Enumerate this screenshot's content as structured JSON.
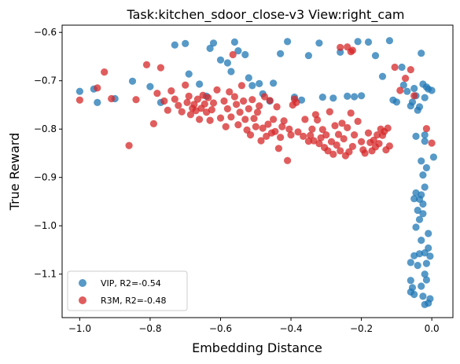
{
  "chart_data": {
    "type": "scatter",
    "title": "Task:kitchen_sdoor_close-v3 View:right_cam",
    "xlabel": "Embedding Distance",
    "ylabel": "True Reward",
    "xlim": [
      -1.05,
      0.06
    ],
    "ylim": [
      -1.19,
      -0.585
    ],
    "x_ticks": [
      -1.0,
      -0.8,
      -0.6,
      -0.4,
      -0.2,
      0.0
    ],
    "x_tick_labels": [
      "−1.0",
      "−0.8",
      "−0.6",
      "−0.4",
      "−0.2",
      "0.0"
    ],
    "y_ticks": [
      -0.6,
      -0.7,
      -0.8,
      -0.9,
      -1.0,
      -1.1
    ],
    "y_tick_labels": [
      "−0.6",
      "−0.7",
      "−0.8",
      "−0.9",
      "−1.0",
      "−1.1"
    ],
    "grid": false,
    "legend_position": "lower-left",
    "series": [
      {
        "name": "VIP, R2=-0.54",
        "color": "#1f77b4",
        "points": [
          [
            -1.0,
            -0.722
          ],
          [
            -0.96,
            -0.717
          ],
          [
            -0.95,
            -0.745
          ],
          [
            -0.9,
            -0.737
          ],
          [
            -0.85,
            -0.701
          ],
          [
            -0.8,
            -0.712
          ],
          [
            -0.77,
            -0.745
          ],
          [
            -0.73,
            -0.626
          ],
          [
            -0.7,
            -0.623
          ],
          [
            -0.69,
            -0.686
          ],
          [
            -0.66,
            -0.707
          ],
          [
            -0.64,
            -0.732
          ],
          [
            -0.63,
            -0.633
          ],
          [
            -0.62,
            -0.622
          ],
          [
            -0.6,
            -0.657
          ],
          [
            -0.58,
            -0.663
          ],
          [
            -0.57,
            -0.681
          ],
          [
            -0.56,
            -0.62
          ],
          [
            -0.55,
            -0.638
          ],
          [
            -0.53,
            -0.646
          ],
          [
            -0.52,
            -0.694
          ],
          [
            -0.51,
            -0.71
          ],
          [
            -0.49,
            -0.706
          ],
          [
            -0.48,
            -0.727
          ],
          [
            -0.46,
            -0.742
          ],
          [
            -0.45,
            -0.705
          ],
          [
            -0.43,
            -0.644
          ],
          [
            -0.41,
            -0.619
          ],
          [
            -0.39,
            -0.734
          ],
          [
            -0.37,
            -0.74
          ],
          [
            -0.35,
            -0.648
          ],
          [
            -0.32,
            -0.622
          ],
          [
            -0.31,
            -0.734
          ],
          [
            -0.28,
            -0.736
          ],
          [
            -0.26,
            -0.641
          ],
          [
            -0.24,
            -0.732
          ],
          [
            -0.22,
            -0.733
          ],
          [
            -0.21,
            -0.619
          ],
          [
            -0.2,
            -0.731
          ],
          [
            -0.18,
            -0.62
          ],
          [
            -0.16,
            -0.648
          ],
          [
            -0.14,
            -0.691
          ],
          [
            -0.12,
            -0.617
          ],
          [
            -0.11,
            -0.74
          ],
          [
            -0.1,
            -0.744
          ],
          [
            -0.085,
            -0.672
          ],
          [
            -0.08,
            -0.709
          ],
          [
            -0.07,
            -0.722
          ],
          [
            -0.06,
            -0.752
          ],
          [
            -0.055,
            -0.744
          ],
          [
            -0.05,
            -0.716
          ],
          [
            -0.045,
            -0.731
          ],
          [
            -0.04,
            -0.761
          ],
          [
            -0.035,
            -0.754
          ],
          [
            -0.03,
            -0.643
          ],
          [
            -0.025,
            -0.707
          ],
          [
            -0.02,
            -0.735
          ],
          [
            -0.015,
            -0.713
          ],
          [
            -0.01,
            -0.717
          ],
          [
            0.0,
            -0.72
          ],
          [
            0.005,
            -0.858
          ],
          [
            -0.02,
            -0.825
          ],
          [
            -0.045,
            -0.815
          ],
          [
            -0.03,
            -0.866
          ],
          [
            -0.02,
            -0.812
          ],
          [
            -0.015,
            -0.88
          ],
          [
            -0.025,
            -0.895
          ],
          [
            -0.02,
            -0.92
          ],
          [
            -0.03,
            -0.936
          ],
          [
            -0.035,
            -0.945
          ],
          [
            -0.025,
            -0.955
          ],
          [
            -0.045,
            -0.932
          ],
          [
            -0.05,
            -0.944
          ],
          [
            -0.04,
            -0.968
          ],
          [
            -0.035,
            -0.987
          ],
          [
            -0.025,
            -0.975
          ],
          [
            -0.045,
            -1.003
          ],
          [
            -0.03,
            -1.03
          ],
          [
            -0.01,
            -1.016
          ],
          [
            -0.01,
            -1.046
          ],
          [
            -0.02,
            -1.056
          ],
          [
            -0.035,
            -1.058
          ],
          [
            -0.005,
            -1.063
          ],
          [
            -0.015,
            -1.078
          ],
          [
            -0.04,
            -1.082
          ],
          [
            -0.05,
            -1.062
          ],
          [
            -0.06,
            -1.076
          ],
          [
            -0.02,
            -1.1
          ],
          [
            -0.015,
            -1.112
          ],
          [
            -0.06,
            -1.113
          ],
          [
            -0.055,
            -1.128
          ],
          [
            -0.06,
            -1.137
          ],
          [
            -0.05,
            -1.142
          ],
          [
            -0.03,
            -1.125
          ],
          [
            -0.025,
            -1.146
          ],
          [
            -0.02,
            -1.163
          ],
          [
            -0.01,
            -1.16
          ],
          [
            -0.005,
            -1.151
          ]
        ]
      },
      {
        "name": "R3M, R2=-0.48",
        "color": "#d62728",
        "points": [
          [
            -1.0,
            -0.74
          ],
          [
            -0.95,
            -0.715
          ],
          [
            -0.93,
            -0.682
          ],
          [
            -0.91,
            -0.737
          ],
          [
            -0.86,
            -0.834
          ],
          [
            -0.84,
            -0.739
          ],
          [
            -0.81,
            -0.667
          ],
          [
            -0.79,
            -0.789
          ],
          [
            -0.78,
            -0.726
          ],
          [
            -0.77,
            -0.673
          ],
          [
            -0.76,
            -0.742
          ],
          [
            -0.75,
            -0.761
          ],
          [
            -0.74,
            -0.721
          ],
          [
            -0.73,
            -0.738
          ],
          [
            -0.72,
            -0.751
          ],
          [
            -0.71,
            -0.764
          ],
          [
            -0.7,
            -0.709
          ],
          [
            -0.695,
            -0.745
          ],
          [
            -0.69,
            -0.732
          ],
          [
            -0.685,
            -0.77
          ],
          [
            -0.68,
            -0.757
          ],
          [
            -0.675,
            -0.749
          ],
          [
            -0.67,
            -0.762
          ],
          [
            -0.665,
            -0.738
          ],
          [
            -0.66,
            -0.78
          ],
          [
            -0.655,
            -0.757
          ],
          [
            -0.65,
            -0.73
          ],
          [
            -0.645,
            -0.748
          ],
          [
            -0.64,
            -0.765
          ],
          [
            -0.635,
            -0.735
          ],
          [
            -0.63,
            -0.782
          ],
          [
            -0.625,
            -0.76
          ],
          [
            -0.62,
            -0.746
          ],
          [
            -0.61,
            -0.719
          ],
          [
            -0.6,
            -0.777
          ],
          [
            -0.59,
            -0.742
          ],
          [
            -0.585,
            -0.795
          ],
          [
            -0.58,
            -0.758
          ],
          [
            -0.575,
            -0.723
          ],
          [
            -0.57,
            -0.775
          ],
          [
            -0.565,
            -0.646
          ],
          [
            -0.56,
            -0.733
          ],
          [
            -0.555,
            -0.749
          ],
          [
            -0.55,
            -0.791
          ],
          [
            -0.545,
            -0.765
          ],
          [
            -0.54,
            -0.71
          ],
          [
            -0.535,
            -0.742
          ],
          [
            -0.53,
            -0.78
          ],
          [
            -0.525,
            -0.802
          ],
          [
            -0.52,
            -0.758
          ],
          [
            -0.515,
            -0.812
          ],
          [
            -0.51,
            -0.739
          ],
          [
            -0.505,
            -0.778
          ],
          [
            -0.5,
            -0.795
          ],
          [
            -0.495,
            -0.765
          ],
          [
            -0.49,
            -0.752
          ],
          [
            -0.485,
            -0.824
          ],
          [
            -0.48,
            -0.798
          ],
          [
            -0.475,
            -0.733
          ],
          [
            -0.47,
            -0.815
          ],
          [
            -0.465,
            -0.79
          ],
          [
            -0.46,
            -0.741
          ],
          [
            -0.455,
            -0.808
          ],
          [
            -0.45,
            -0.78
          ],
          [
            -0.445,
            -0.805
          ],
          [
            -0.44,
            -0.754
          ],
          [
            -0.435,
            -0.84
          ],
          [
            -0.43,
            -0.817
          ],
          [
            -0.425,
            -0.795
          ],
          [
            -0.42,
            -0.783
          ],
          [
            -0.41,
            -0.865
          ],
          [
            -0.405,
            -0.8
          ],
          [
            -0.4,
            -0.812
          ],
          [
            -0.395,
            -0.75
          ],
          [
            -0.39,
            -0.738
          ],
          [
            -0.385,
            -0.745
          ],
          [
            -0.38,
            -0.806
          ],
          [
            -0.365,
            -0.815
          ],
          [
            -0.36,
            -0.78
          ],
          [
            -0.35,
            -0.825
          ],
          [
            -0.345,
            -0.813
          ],
          [
            -0.34,
            -0.8
          ],
          [
            -0.335,
            -0.824
          ],
          [
            -0.33,
            -0.77
          ],
          [
            -0.325,
            -0.781
          ],
          [
            -0.32,
            -0.83
          ],
          [
            -0.315,
            -0.818
          ],
          [
            -0.31,
            -0.801
          ],
          [
            -0.305,
            -0.838
          ],
          [
            -0.3,
            -0.812
          ],
          [
            -0.295,
            -0.845
          ],
          [
            -0.29,
            -0.764
          ],
          [
            -0.285,
            -0.826
          ],
          [
            -0.28,
            -0.852
          ],
          [
            -0.275,
            -0.793
          ],
          [
            -0.27,
            -0.833
          ],
          [
            -0.265,
            -0.811
          ],
          [
            -0.26,
            -0.845
          ],
          [
            -0.255,
            -0.788
          ],
          [
            -0.25,
            -0.82
          ],
          [
            -0.245,
            -0.855
          ],
          [
            -0.24,
            -0.797
          ],
          [
            -0.235,
            -0.847
          ],
          [
            -0.23,
            -0.767
          ],
          [
            -0.225,
            -0.836
          ],
          [
            -0.22,
            -0.812
          ],
          [
            -0.21,
            -0.784
          ],
          [
            -0.2,
            -0.826
          ],
          [
            -0.195,
            -0.843
          ],
          [
            -0.19,
            -0.85
          ],
          [
            -0.18,
            -0.808
          ],
          [
            -0.175,
            -0.828
          ],
          [
            -0.17,
            -0.845
          ],
          [
            -0.165,
            -0.823
          ],
          [
            -0.16,
            -0.837
          ],
          [
            -0.155,
            -0.812
          ],
          [
            -0.15,
            -0.83
          ],
          [
            -0.145,
            -0.8
          ],
          [
            -0.14,
            -0.813
          ],
          [
            -0.135,
            -0.805
          ],
          [
            -0.13,
            -0.843
          ],
          [
            -0.125,
            -0.798
          ],
          [
            -0.12,
            -0.835
          ],
          [
            -0.23,
            -0.64
          ],
          [
            -0.225,
            -0.637
          ],
          [
            -0.24,
            -0.63
          ],
          [
            -0.26,
            -0.631
          ],
          [
            -0.105,
            -0.672
          ],
          [
            -0.09,
            -0.72
          ],
          [
            -0.075,
            -0.695
          ],
          [
            -0.06,
            -0.677
          ],
          [
            0.0,
            -0.829
          ],
          [
            -0.015,
            -0.799
          ],
          [
            -0.05,
            -0.731
          ]
        ]
      }
    ]
  }
}
